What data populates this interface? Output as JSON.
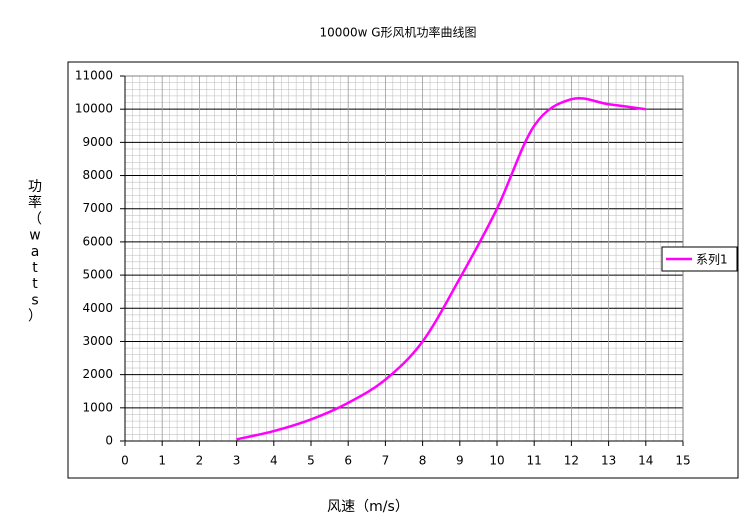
{
  "chart_data": {
    "type": "line",
    "title": "10000w G形风机功率曲线图",
    "x_label": "风速（m/s）",
    "y_label": "功率（watts）",
    "x": [
      3,
      4,
      5,
      6,
      7,
      8,
      9,
      10,
      11,
      12,
      13,
      14
    ],
    "series": [
      {
        "name": "系列1",
        "color": "#ff00ff",
        "values": [
          50,
          300,
          650,
          1150,
          1850,
          3000,
          4900,
          7000,
          9500,
          10300,
          10150,
          10000
        ]
      }
    ],
    "xlim": [
      0,
      15
    ],
    "xticks": [
      0,
      1,
      2,
      3,
      4,
      5,
      6,
      7,
      8,
      9,
      10,
      11,
      12,
      13,
      14,
      15
    ],
    "ylim": [
      0,
      11000
    ],
    "yticks": [
      0,
      1000,
      2000,
      3000,
      4000,
      5000,
      6000,
      7000,
      8000,
      9000,
      10000,
      11000
    ],
    "grid": true,
    "legend": "right"
  }
}
